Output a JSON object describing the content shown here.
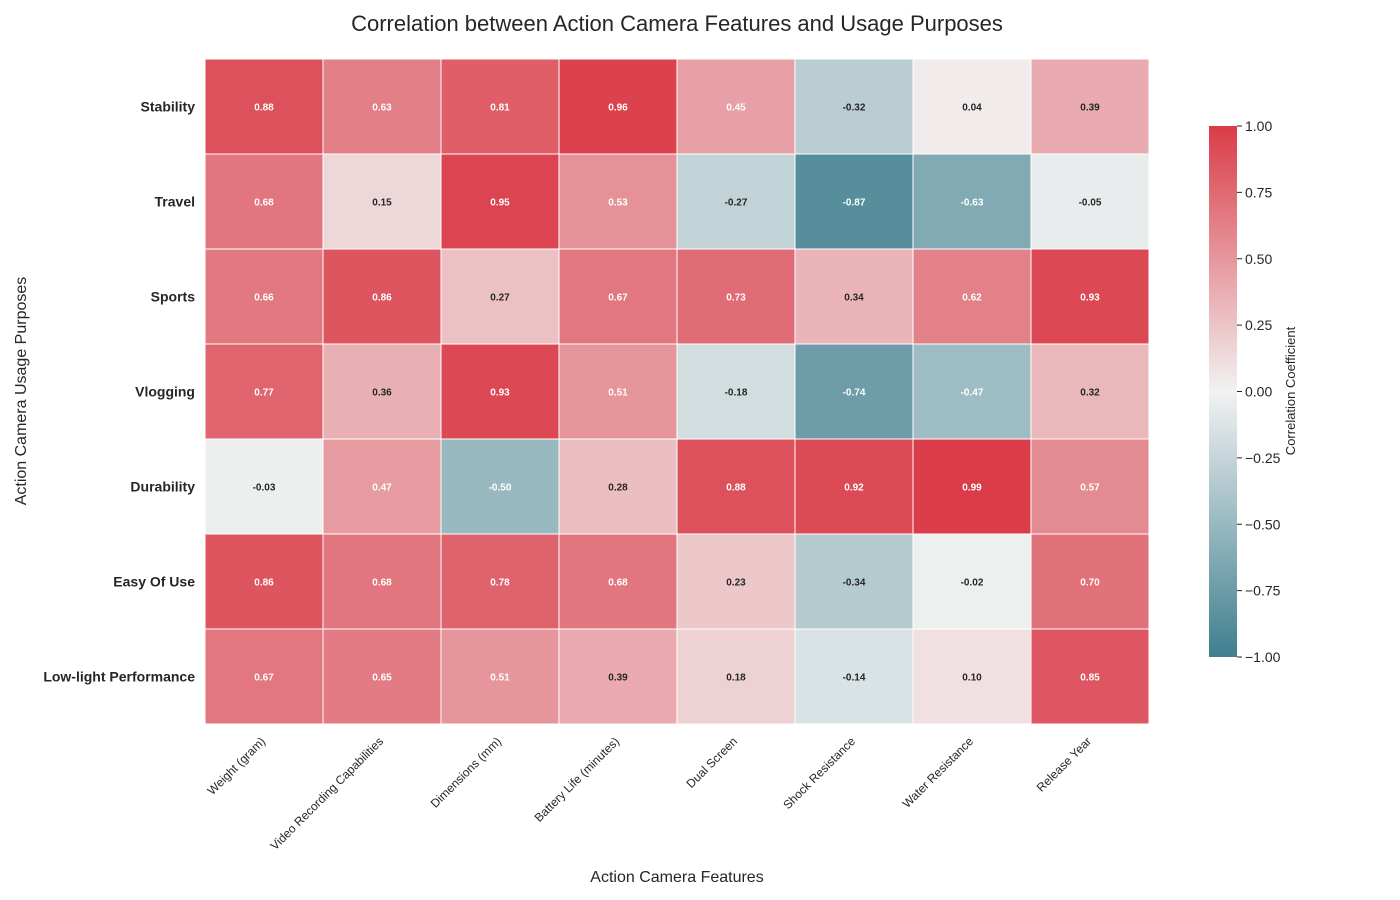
{
  "chart_data": {
    "type": "heatmap",
    "title": "Correlation between Action Camera Features and Usage Purposes",
    "xlabel": "Action Camera Features",
    "ylabel": "Action Camera Usage Purposes",
    "columns": [
      "Weight (gram)",
      "Video Recording Capabilities",
      "Dimensions (mm)",
      "Battery Life (minutes)",
      "Dual Screen",
      "Shock Resistance",
      "Water Resistance",
      "Release Year"
    ],
    "rows": [
      "Stability",
      "Travel",
      "Sports",
      "Vlogging",
      "Durability",
      "Easy Of Use",
      "Low-light Performance"
    ],
    "values": [
      [
        0.88,
        0.63,
        0.81,
        0.96,
        0.45,
        -0.32,
        0.04,
        0.39
      ],
      [
        0.68,
        0.15,
        0.95,
        0.53,
        -0.27,
        -0.87,
        -0.63,
        -0.05
      ],
      [
        0.66,
        0.86,
        0.27,
        0.67,
        0.73,
        0.34,
        0.62,
        0.93
      ],
      [
        0.77,
        0.36,
        0.93,
        0.51,
        -0.18,
        -0.74,
        -0.47,
        0.32
      ],
      [
        -0.03,
        0.47,
        -0.5,
        0.28,
        0.88,
        0.92,
        0.99,
        0.57
      ],
      [
        0.86,
        0.68,
        0.78,
        0.68,
        0.23,
        -0.34,
        -0.02,
        0.7
      ],
      [
        0.67,
        0.65,
        0.51,
        0.39,
        0.18,
        -0.14,
        0.1,
        0.85
      ]
    ],
    "value_format": "2 decimals",
    "colorbar": {
      "label": "Correlation Coefficient",
      "range": [
        -1.0,
        1.0
      ],
      "ticks": [
        "−1.00",
        "−0.75",
        "−0.50",
        "−0.25",
        "0.00",
        "0.25",
        "0.50",
        "0.75",
        "1.00"
      ],
      "colors": {
        "negative": "#3f7f8f",
        "neutral": "#f2f2f2",
        "positive": "#da3b47"
      }
    }
  }
}
